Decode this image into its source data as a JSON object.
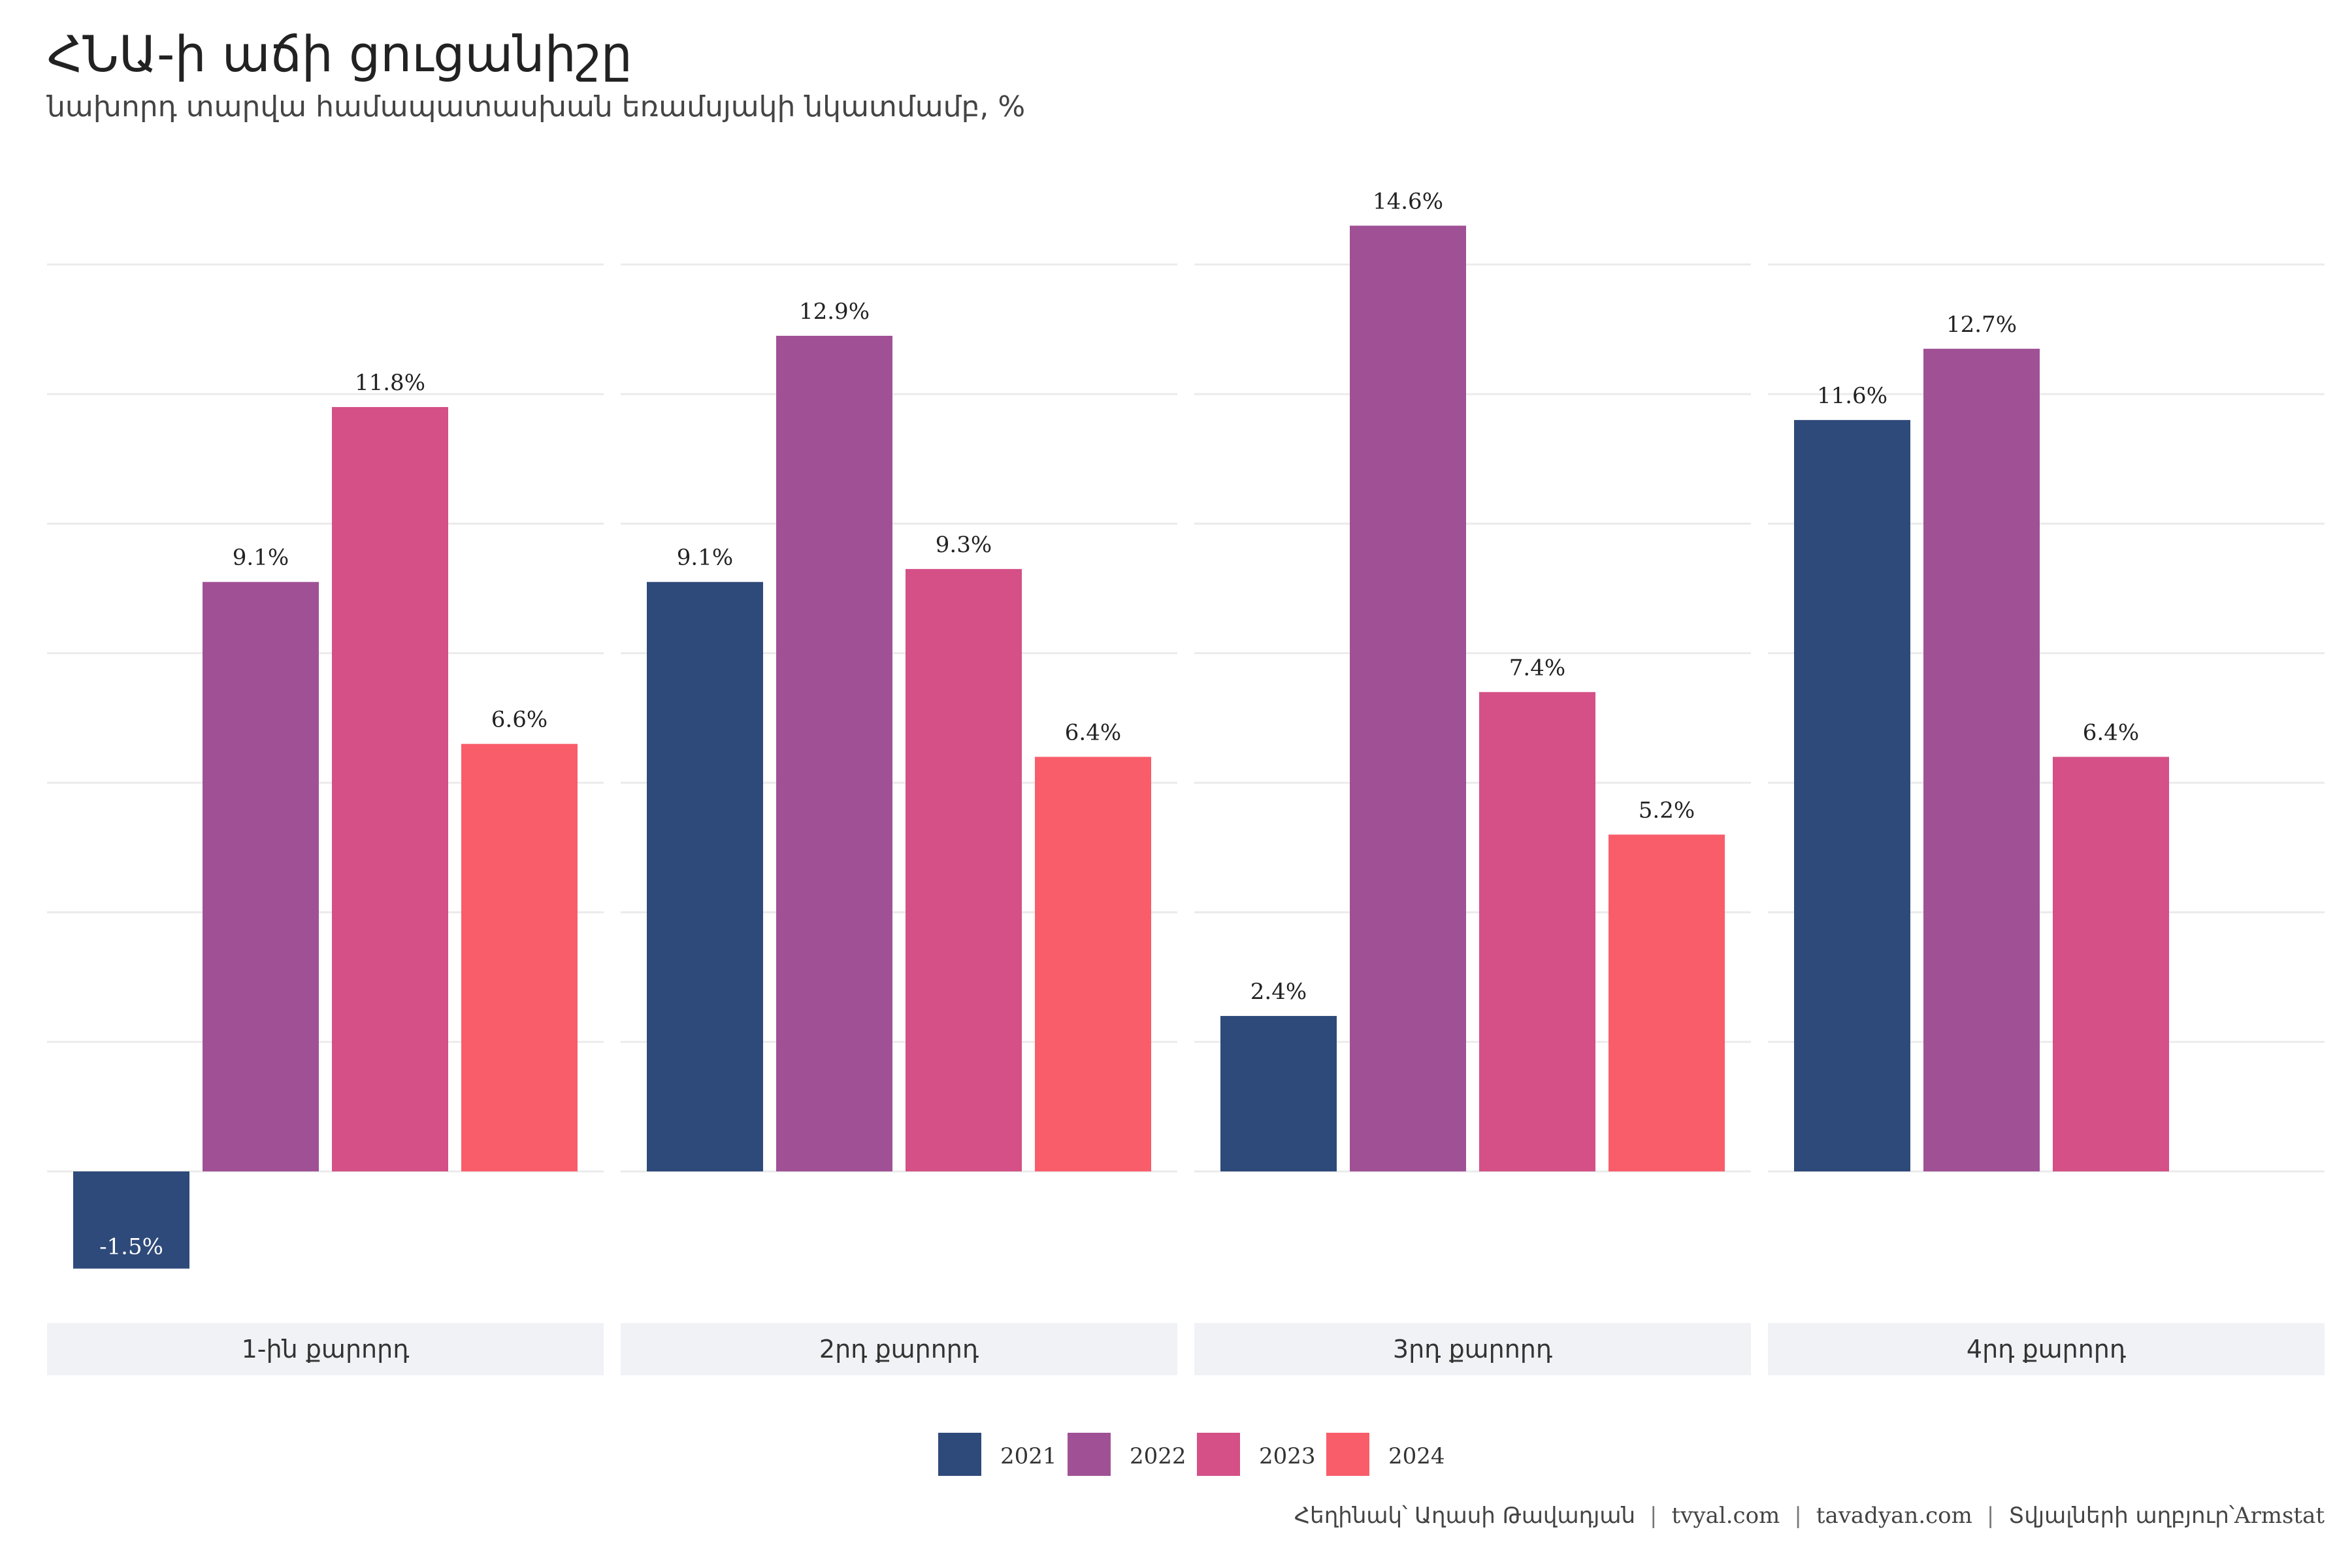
{
  "title": "ՀՆԱ-ի աճի ցուցանիշը",
  "subtitle": "նախորդ տարվա համապատասխան եռամսյակի նկատմամբ, %",
  "caption": {
    "author": "Հեղինակ՝ Աղասի Թավադյան",
    "site1": "tvyal.com",
    "site2": "tavadyan.com",
    "source_label": "Տվյալների աղբյուր՝",
    "source_name": "Armstat",
    "separator": "|"
  },
  "chart_data": {
    "type": "bar",
    "title": "ՀՆԱ-ի աճի ցուցանիշը",
    "subtitle": "նախորդ տարվա համապատասխան եռամսյակի նկատմամբ, %",
    "ylim": [
      -3,
      16
    ],
    "grid": true,
    "legend_position": "bottom",
    "panels": [
      "1-ին քարորդ",
      "2րդ քարորդ",
      "3րդ քարորդ",
      "4րդ քարորդ"
    ],
    "series": [
      {
        "name": "2021",
        "color": "#2e4a7a",
        "values": [
          -1.5,
          9.1,
          2.4,
          11.6
        ],
        "labels": [
          "-1.5%",
          "9.1%",
          "2.4%",
          "11.6%"
        ]
      },
      {
        "name": "2022",
        "color": "#a05195",
        "values": [
          9.1,
          12.9,
          14.6,
          12.7
        ],
        "labels": [
          "9.1%",
          "12.9%",
          "14.6%",
          "12.7%"
        ]
      },
      {
        "name": "2023",
        "color": "#d45087",
        "values": [
          11.8,
          9.3,
          7.4,
          6.4
        ],
        "labels": [
          "11.8%",
          "9.3%",
          "7.4%",
          "6.4%"
        ]
      },
      {
        "name": "2024",
        "color": "#f95d6a",
        "values": [
          6.6,
          6.4,
          5.2,
          null
        ],
        "labels": [
          "6.6%",
          "6.4%",
          "5.2%",
          ""
        ]
      }
    ]
  }
}
